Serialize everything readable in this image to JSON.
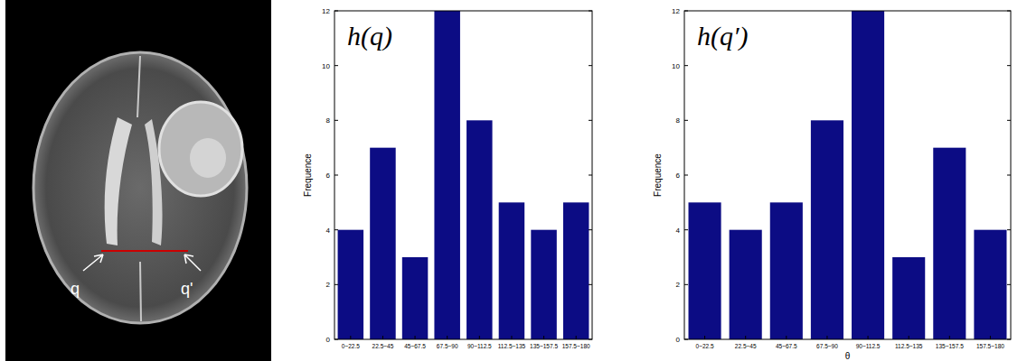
{
  "image": {
    "labels": [
      "q",
      "q'"
    ]
  },
  "chart_data": [
    {
      "type": "bar",
      "title": "h(q)",
      "y_label": "Frequence",
      "categories": [
        "0~22.5",
        "22.5~45",
        "45~67.5",
        "67.5~90",
        "90~112.5",
        "112.5~135",
        "135~157.5",
        "157.5~180"
      ],
      "values": [
        4,
        7,
        3,
        12,
        8,
        5,
        4,
        5
      ],
      "color": "#0c0c84",
      "ylim": [
        0,
        12
      ],
      "yticks": [
        0,
        2,
        4,
        6,
        8,
        10,
        12
      ],
      "grid": false
    },
    {
      "type": "bar",
      "title": "h(q′)",
      "y_label": "Frequence",
      "x_label": "θ",
      "categories": [
        "0~22.5",
        "22.5~45",
        "45~67.5",
        "67.5~90",
        "90~112.5",
        "112.5~135",
        "135~157.5",
        "157.5~180"
      ],
      "values": [
        5,
        4,
        5,
        8,
        12,
        3,
        7,
        4
      ],
      "color": "#0c0c84",
      "ylim": [
        0,
        12
      ],
      "yticks": [
        0,
        2,
        4,
        6,
        8,
        10,
        12
      ],
      "grid": false
    }
  ]
}
